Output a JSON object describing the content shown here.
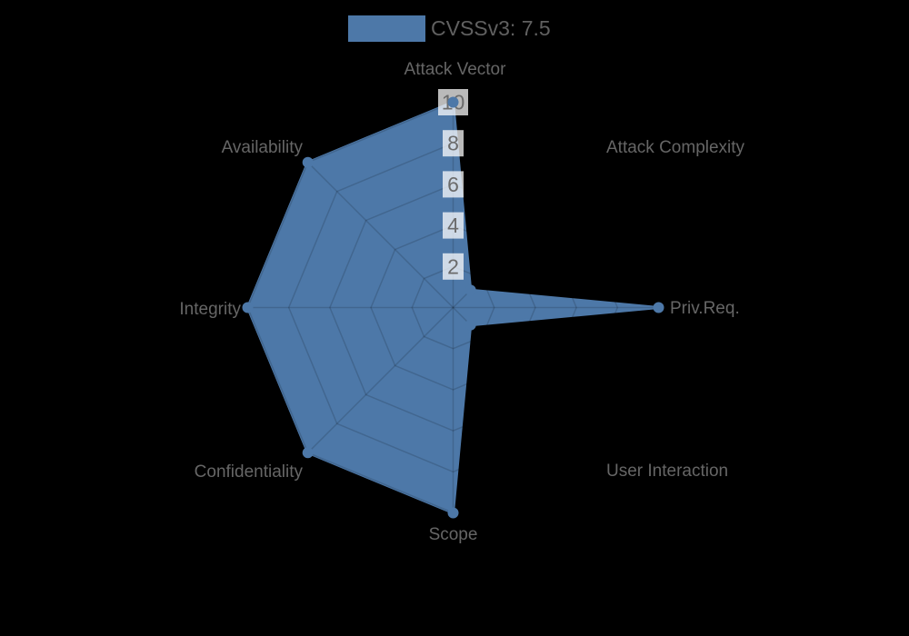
{
  "background_color": "#000000",
  "legend": {
    "label": "CVSSv3: 7.5",
    "swatch_color": "#4d78a8"
  },
  "chart_data": {
    "type": "radar",
    "title": "CVSSv3: 7.5",
    "categories": [
      "Attack Vector",
      "Attack Complexity",
      "Priv.Req.",
      "User Interaction",
      "Scope",
      "Confidentiality",
      "Integrity",
      "Availability"
    ],
    "series": [
      {
        "name": "CVSSv3: 7.5",
        "values": [
          10,
          1.2,
          10,
          1.2,
          10,
          10,
          10,
          10
        ]
      }
    ],
    "ticks": [
      2,
      4,
      6,
      8,
      10
    ],
    "rmax": 10,
    "grid": true,
    "legend_position": "top",
    "fill_color": "#4d78a8",
    "grid_color": "rgba(0,0,0,0.15)",
    "label_color": "#666666",
    "tick_color": "#6b6b6b",
    "tick_backdrop": "rgba(255,255,255,0.73)"
  }
}
